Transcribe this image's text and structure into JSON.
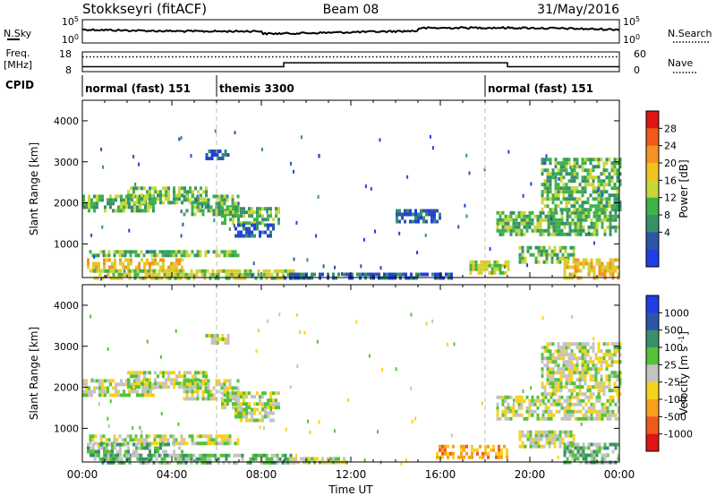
{
  "header": {
    "station": "Stokkseyri (fitACF)",
    "beam": "Beam 08",
    "date": "31/May/2016"
  },
  "strips": {
    "nsky_label": "N.Sky",
    "nsky_tick_top": "10^5",
    "nsky_tick_bottom": "10^0",
    "nsearch_label": "N.Search",
    "freq_label_line1": "Freq.",
    "freq_label_line2": "[MHz]",
    "freq_tick_top": "18",
    "freq_tick_bottom": "8",
    "nave_label": "Nave",
    "nave_tick_top": "60",
    "nave_tick_bottom": "0",
    "cpid_label": "CPID",
    "cpid_segments": [
      {
        "label": "normal (fast) 151",
        "start_hour": 0,
        "end_hour": 6
      },
      {
        "label": "themis 3300",
        "start_hour": 6,
        "end_hour": 18
      },
      {
        "label": "normal (fast) 151",
        "start_hour": 18,
        "end_hour": 24
      }
    ]
  },
  "chart_data": [
    {
      "type": "heatmap",
      "name": "Power",
      "ylabel": "Slant Range [km]",
      "xlabel": "Time UT",
      "xlim_hours": [
        0,
        24
      ],
      "ylim": [
        180,
        4500
      ],
      "x_ticks": [
        "00:00",
        "04:00",
        "08:00",
        "12:00",
        "16:00",
        "20:00",
        "00:00"
      ],
      "y_ticks": [
        1000,
        2000,
        3000,
        4000
      ],
      "colorbar": {
        "label": "Power [dB]",
        "ticks": [
          "4",
          "8",
          "12",
          "16",
          "20",
          "24",
          "28"
        ],
        "colors": [
          "#1f3ee6",
          "#2e55a8",
          "#38906b",
          "#3fb24a",
          "#c9d63a",
          "#f2c21f",
          "#f39322",
          "#ef5a1b",
          "#e01515"
        ]
      },
      "regions": [
        {
          "t0": 0.0,
          "t1": 3.2,
          "r0": 1800,
          "r1": 2200,
          "lvl": 3
        },
        {
          "t0": 2.0,
          "t1": 5.5,
          "r0": 2000,
          "r1": 2400,
          "lvl": 3
        },
        {
          "t0": 4.5,
          "t1": 7.0,
          "r0": 1750,
          "r1": 2200,
          "lvl": 3
        },
        {
          "t0": 6.2,
          "t1": 8.8,
          "r0": 1500,
          "r1": 1900,
          "lvl": 3
        },
        {
          "t0": 6.8,
          "t1": 8.6,
          "r0": 1200,
          "r1": 1500,
          "lvl": 1
        },
        {
          "t0": 0.3,
          "t1": 7.0,
          "r0": 700,
          "r1": 850,
          "lvl": 3
        },
        {
          "t0": 0.2,
          "t1": 4.5,
          "r0": 380,
          "r1": 650,
          "lvl": 5
        },
        {
          "t0": 0.5,
          "t1": 9.5,
          "r0": 200,
          "r1": 380,
          "lvl": 4
        },
        {
          "t0": 9.0,
          "t1": 16.5,
          "r0": 200,
          "r1": 300,
          "lvl": 1
        },
        {
          "t0": 14.0,
          "t1": 16.0,
          "r0": 1550,
          "r1": 1850,
          "lvl": 1
        },
        {
          "t0": 17.3,
          "t1": 19.0,
          "r0": 300,
          "r1": 600,
          "lvl": 4
        },
        {
          "t0": 18.5,
          "t1": 24.0,
          "r0": 1200,
          "r1": 1800,
          "lvl": 3
        },
        {
          "t0": 20.5,
          "t1": 24.0,
          "r0": 1800,
          "r1": 3100,
          "lvl": 3
        },
        {
          "t0": 19.5,
          "t1": 22.0,
          "r0": 600,
          "r1": 950,
          "lvl": 3
        },
        {
          "t0": 21.5,
          "t1": 24.0,
          "r0": 200,
          "r1": 650,
          "lvl": 5
        },
        {
          "t0": 5.5,
          "t1": 6.5,
          "r0": 3100,
          "r1": 3300,
          "lvl": 1
        }
      ]
    },
    {
      "type": "heatmap",
      "name": "Velocity",
      "ylabel": "Slant Range [km]",
      "xlabel": "Time UT",
      "xlim_hours": [
        0,
        24
      ],
      "ylim": [
        180,
        4500
      ],
      "x_ticks": [
        "00:00",
        "04:00",
        "08:00",
        "12:00",
        "16:00",
        "20:00",
        "00:00"
      ],
      "y_ticks": [
        1000,
        2000,
        3000,
        4000
      ],
      "colorbar": {
        "label": "Velocity [m s^-1]",
        "ticks": [
          "1000",
          "500",
          "100",
          "25",
          "-25",
          "-100",
          "-500",
          "-1000"
        ],
        "colors": [
          "#1f3ee6",
          "#2e55a8",
          "#38906b",
          "#55c23a",
          "#c3c3c3",
          "#f6d21d",
          "#f7a01e",
          "#ef5a1b",
          "#e01515"
        ]
      },
      "regions": [
        {
          "t0": 0.0,
          "t1": 3.2,
          "r0": 1800,
          "r1": 2200,
          "lvl": 4
        },
        {
          "t0": 2.0,
          "t1": 5.5,
          "r0": 2000,
          "r1": 2400,
          "lvl": 4
        },
        {
          "t0": 4.5,
          "t1": 7.0,
          "r0": 1750,
          "r1": 2200,
          "lvl": 4
        },
        {
          "t0": 6.2,
          "t1": 8.8,
          "r0": 1500,
          "r1": 1900,
          "lvl": 4
        },
        {
          "t0": 6.8,
          "t1": 8.6,
          "r0": 1200,
          "r1": 1500,
          "lvl": 4
        },
        {
          "t0": 0.3,
          "t1": 7.0,
          "r0": 650,
          "r1": 850,
          "lvl": 4
        },
        {
          "t0": 0.2,
          "t1": 4.5,
          "r0": 380,
          "r1": 650,
          "lvl": 3
        },
        {
          "t0": 0.5,
          "t1": 9.5,
          "r0": 200,
          "r1": 380,
          "lvl": 3
        },
        {
          "t0": 9.0,
          "t1": 12.0,
          "r0": 200,
          "r1": 300,
          "lvl": 4
        },
        {
          "t0": 15.8,
          "t1": 19.0,
          "r0": 300,
          "r1": 600,
          "lvl": 6
        },
        {
          "t0": 18.5,
          "t1": 24.0,
          "r0": 1200,
          "r1": 1800,
          "lvl": 4
        },
        {
          "t0": 20.5,
          "t1": 24.0,
          "r0": 1800,
          "r1": 3100,
          "lvl": 4
        },
        {
          "t0": 19.5,
          "t1": 22.0,
          "r0": 600,
          "r1": 950,
          "lvl": 4
        },
        {
          "t0": 21.5,
          "t1": 24.0,
          "r0": 200,
          "r1": 650,
          "lvl": 3
        },
        {
          "t0": 5.5,
          "t1": 6.5,
          "r0": 3100,
          "r1": 3300,
          "lvl": 4
        }
      ]
    }
  ]
}
